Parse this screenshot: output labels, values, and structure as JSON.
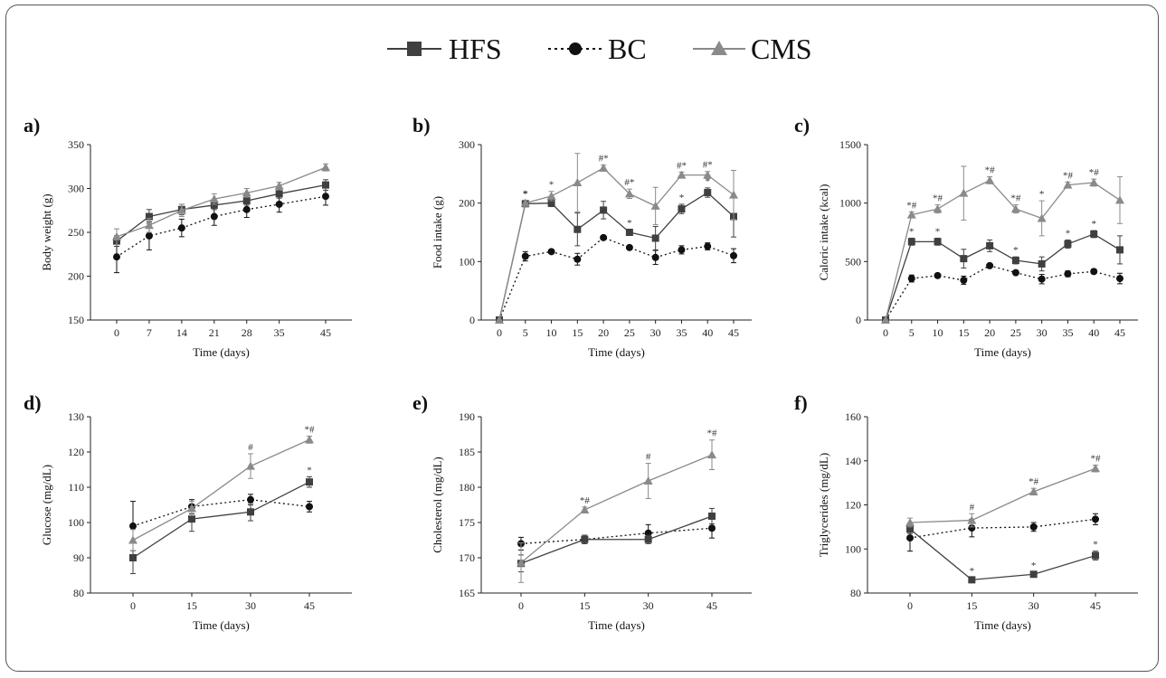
{
  "legend": [
    {
      "name": "HFS",
      "marker": "square",
      "dash": "solid",
      "color": "#404040"
    },
    {
      "name": "BC",
      "marker": "circle",
      "dash": "dotted",
      "color": "#111111"
    },
    {
      "name": "CMS",
      "marker": "triangle",
      "dash": "solid",
      "color": "#8a8a8a"
    }
  ],
  "chart_data": [
    {
      "type": "line",
      "panel_label": "a)",
      "title": "",
      "xlabel": "Time (days)",
      "ylabel": "Body weight (g)",
      "ylim": [
        150,
        350
      ],
      "yticks": [
        150,
        200,
        250,
        300,
        350
      ],
      "x": [
        0,
        7,
        14,
        21,
        28,
        35,
        45
      ],
      "series": [
        {
          "name": "HFS",
          "values": [
            240,
            268,
            276,
            281,
            286,
            294,
            304
          ],
          "err": [
            6,
            8,
            6,
            5,
            5,
            5,
            6
          ],
          "annotations": [
            "",
            "",
            "",
            "",
            "",
            "",
            ""
          ]
        },
        {
          "name": "BC",
          "values": [
            222,
            246,
            255,
            268,
            276,
            282,
            291
          ],
          "err": [
            18,
            16,
            10,
            10,
            9,
            9,
            10
          ],
          "annotations": [
            "",
            "",
            "",
            "",
            "",
            "",
            ""
          ]
        },
        {
          "name": "CMS",
          "values": [
            245,
            258,
            275,
            288,
            295,
            303,
            324
          ],
          "err": [
            9,
            8,
            7,
            6,
            5,
            4,
            4
          ],
          "annotations": [
            "",
            "",
            "",
            "",
            "",
            "",
            ""
          ]
        }
      ]
    },
    {
      "type": "line",
      "panel_label": "b)",
      "title": "",
      "xlabel": "Time (days)",
      "ylabel": "Food intake (g)",
      "ylim": [
        0,
        300
      ],
      "yticks": [
        0,
        100,
        200,
        300
      ],
      "x": [
        0,
        5,
        10,
        15,
        20,
        25,
        30,
        35,
        40,
        45
      ],
      "series": [
        {
          "name": "HFS",
          "values": [
            0,
            199,
            200,
            155,
            188,
            150,
            140,
            190,
            218,
            177
          ],
          "err": [
            0,
            5,
            6,
            28,
            15,
            5,
            20,
            8,
            8,
            35
          ],
          "annotations": [
            "",
            "*",
            "",
            "",
            "",
            "*",
            "",
            "*",
            "*",
            ""
          ]
        },
        {
          "name": "BC",
          "values": [
            0,
            109,
            117,
            104,
            141,
            124,
            107,
            120,
            126,
            110
          ],
          "err": [
            0,
            8,
            3,
            10,
            3,
            3,
            12,
            7,
            6,
            12
          ],
          "annotations": [
            "",
            "",
            "",
            "",
            "",
            "",
            "",
            "",
            "",
            ""
          ]
        },
        {
          "name": "CMS",
          "values": [
            0,
            200,
            212,
            235,
            260,
            216,
            195,
            248,
            248,
            214
          ],
          "err": [
            0,
            5,
            8,
            50,
            5,
            8,
            32,
            5,
            6,
            42
          ],
          "annotations": [
            "",
            "*",
            "*",
            "",
            "#*",
            "#*",
            "",
            "#*",
            "#*",
            ""
          ]
        }
      ]
    },
    {
      "type": "line",
      "panel_label": "c)",
      "title": "",
      "xlabel": "Time (days)",
      "ylabel": "Caloric intake (kcal)",
      "ylim": [
        0,
        1500
      ],
      "yticks": [
        0,
        500,
        1000,
        1500
      ],
      "x": [
        0,
        5,
        10,
        15,
        20,
        25,
        30,
        35,
        40,
        45
      ],
      "series": [
        {
          "name": "HFS",
          "values": [
            0,
            670,
            670,
            525,
            635,
            510,
            480,
            650,
            735,
            600
          ],
          "err": [
            0,
            30,
            30,
            80,
            50,
            30,
            60,
            35,
            30,
            120
          ],
          "annotations": [
            "",
            "*",
            "*",
            "",
            "",
            "*",
            "",
            "*",
            "*",
            ""
          ]
        },
        {
          "name": "BC",
          "values": [
            0,
            355,
            380,
            340,
            465,
            405,
            350,
            395,
            415,
            355
          ],
          "err": [
            0,
            30,
            15,
            35,
            15,
            15,
            40,
            25,
            20,
            45
          ],
          "annotations": [
            "",
            "",
            "",
            "",
            "",
            "",
            "",
            "",
            "",
            ""
          ]
        },
        {
          "name": "CMS",
          "values": [
            0,
            900,
            950,
            1085,
            1195,
            950,
            870,
            1155,
            1175,
            1025
          ],
          "err": [
            0,
            25,
            35,
            230,
            30,
            35,
            150,
            25,
            30,
            200
          ],
          "annotations": [
            "",
            "*#",
            "*#",
            "",
            "*#",
            "*#",
            "*",
            "*#",
            "*#",
            ""
          ]
        }
      ]
    },
    {
      "type": "line",
      "panel_label": "d)",
      "title": "",
      "xlabel": "Time (days)",
      "ylabel": "Glucose (mg/dL)",
      "ylim": [
        80,
        130
      ],
      "yticks": [
        80,
        90,
        100,
        110,
        120,
        130
      ],
      "x": [
        0,
        15,
        30,
        45
      ],
      "series": [
        {
          "name": "HFS",
          "values": [
            90,
            101,
            103,
            111.5
          ],
          "err": [
            4.5,
            3.5,
            2.5,
            1.5
          ],
          "annotations": [
            "",
            "",
            "",
            "*"
          ]
        },
        {
          "name": "BC",
          "values": [
            99,
            104.5,
            106.5,
            104.5
          ],
          "err": [
            7,
            2,
            1.5,
            1.5
          ],
          "annotations": [
            "",
            "",
            "",
            ""
          ]
        },
        {
          "name": "CMS",
          "values": [
            95,
            104,
            116,
            123.5
          ],
          "err": [
            3,
            2,
            3.5,
            1
          ],
          "annotations": [
            "",
            "",
            "#",
            "*#"
          ]
        }
      ]
    },
    {
      "type": "line",
      "panel_label": "e)",
      "title": "",
      "xlabel": "Time (days)",
      "ylabel": "Cholesterol (mg/dL)",
      "ylim": [
        165,
        190
      ],
      "yticks": [
        165,
        170,
        175,
        180,
        185,
        190
      ],
      "x": [
        0,
        15,
        30,
        45
      ],
      "series": [
        {
          "name": "HFS",
          "values": [
            169.2,
            172.6,
            172.6,
            175.9
          ],
          "err": [
            1.2,
            0.6,
            0.6,
            1.1
          ],
          "annotations": [
            "",
            "",
            "",
            ""
          ]
        },
        {
          "name": "BC",
          "values": [
            172,
            172.6,
            173.5,
            174.2
          ],
          "err": [
            0.9,
            0.6,
            1.2,
            1.4
          ],
          "annotations": [
            "",
            "",
            "",
            ""
          ]
        },
        {
          "name": "CMS",
          "values": [
            169.3,
            176.8,
            180.9,
            184.6
          ],
          "err": [
            2.8,
            0.4,
            2.5,
            2.1
          ],
          "annotations": [
            "",
            "*#",
            "#",
            "*#"
          ]
        }
      ]
    },
    {
      "type": "line",
      "panel_label": "f)",
      "title": "",
      "xlabel": "Time (days)",
      "ylabel": "Triglycerides (mg/dL)",
      "ylim": [
        80,
        160
      ],
      "yticks": [
        80,
        100,
        120,
        140,
        160
      ],
      "x": [
        0,
        15,
        30,
        45
      ],
      "series": [
        {
          "name": "HFS",
          "values": [
            109,
            86,
            88.5,
            97
          ],
          "err": [
            2,
            1,
            1,
            2
          ],
          "annotations": [
            "",
            "*",
            "*",
            "*"
          ]
        },
        {
          "name": "BC",
          "values": [
            105,
            109.5,
            110,
            113.5
          ],
          "err": [
            6,
            4,
            2,
            2.5
          ],
          "annotations": [
            "",
            "",
            "",
            ""
          ]
        },
        {
          "name": "CMS",
          "values": [
            112,
            113,
            126,
            136.5
          ],
          "err": [
            2,
            3,
            1.5,
            1.5
          ],
          "annotations": [
            "",
            "#",
            "*#",
            "*#"
          ]
        }
      ]
    }
  ]
}
